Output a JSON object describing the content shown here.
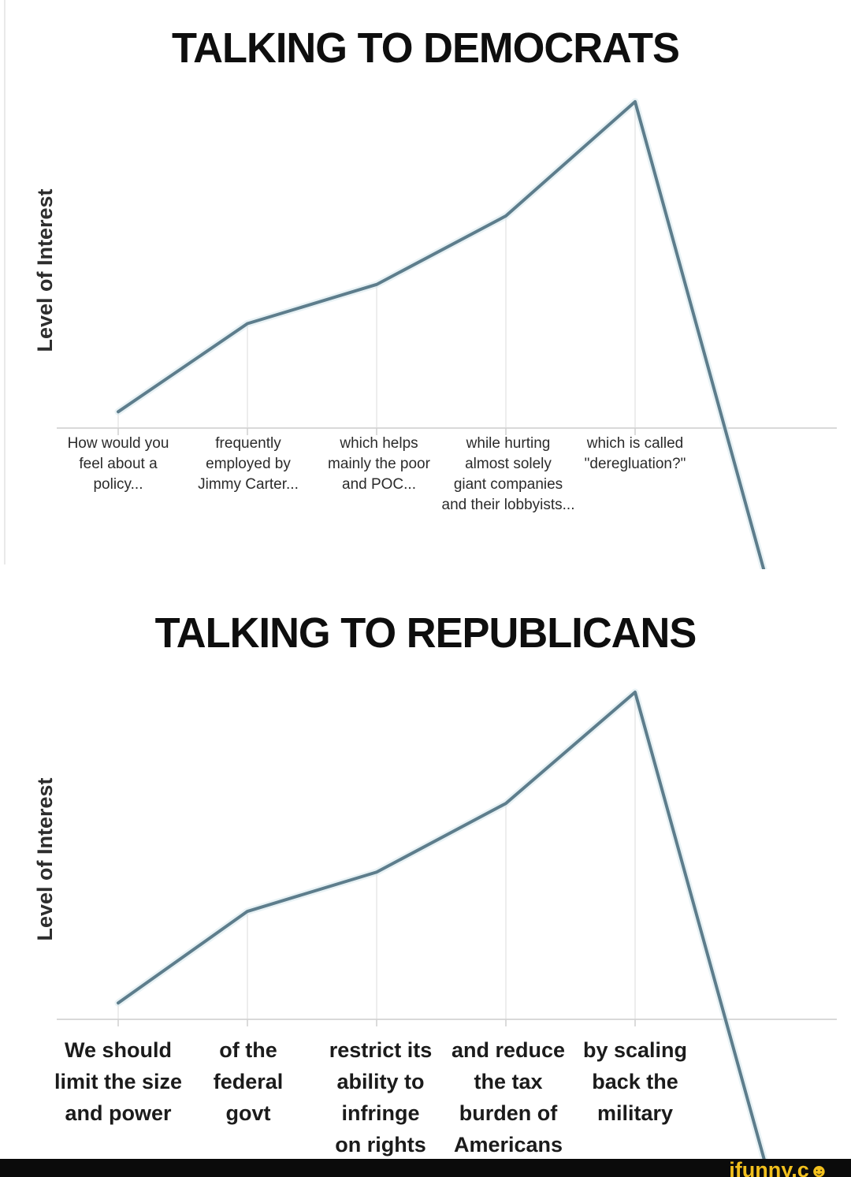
{
  "chart_data": [
    {
      "type": "line",
      "title": "TALKING TO DEMOCRATS",
      "ylabel": "Level of Interest",
      "categories": [
        "How would you\nfeel about a\npolicy...",
        "frequently\nemployed by\nJimmy Carter...",
        "which helps\nmainly the poor\nand POC...",
        "while hurting\nalmost solely\ngiant companies\nand their lobbyists...",
        "which is called\n\"deregluation?\""
      ],
      "values": [
        5,
        32,
        44,
        65,
        100
      ],
      "crash_after_peak": {
        "x_steps_after_last": 1,
        "value": -44
      },
      "ylim": [
        -45,
        105
      ],
      "yticks": [],
      "xticks": "category-centers",
      "grid": "vertical-from-baseline-to-line",
      "legend": "none",
      "line_color": "#5d7d8c",
      "line_halo_color": "#d6e7ec",
      "axis_color": "#d9d9d9",
      "gridline_color": "#e7e7e7",
      "tick_color": "#cfcfcf"
    },
    {
      "type": "line",
      "title": "TALKING TO REPUBLICANS",
      "ylabel": "Level of Interest",
      "categories": [
        "We should\nlimit the size\nand power",
        "of the\nfederal\ngovt",
        "restrict its\nability to\ninfringe\non rights",
        "and reduce\nthe tax\nburden of\nAmericans",
        "by scaling\nback the\nmilitary"
      ],
      "values": [
        5,
        33,
        45,
        66,
        100
      ],
      "crash_after_peak": {
        "x_steps_after_last": 1,
        "value": -43
      },
      "ylim": [
        -45,
        105
      ],
      "yticks": [],
      "xticks": "category-centers",
      "grid": "vertical-from-baseline-to-line",
      "legend": "none",
      "line_color": "#5d7d8c",
      "line_halo_color": "#d6e7ec",
      "axis_color": "#d9d9d9",
      "gridline_color": "#e7e7e7",
      "tick_color": "#cfcfcf"
    }
  ],
  "watermark": {
    "text": "ifunny.c",
    "smiley": "☻",
    "text_color": "#f2c01d",
    "bar_color": "#0b0b0b"
  }
}
